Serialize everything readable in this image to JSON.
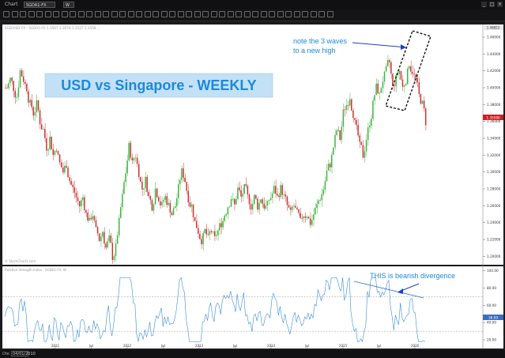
{
  "window": {
    "title": "Chart"
  },
  "symbol": {
    "value": "SGDA1-FX"
  },
  "timeframe": {
    "value": "W"
  },
  "toolbar": {
    "tool_count": 40
  },
  "status": {
    "left_label": "Dte",
    "date_value": "04/01/2010"
  },
  "main_chart": {
    "header_text": "SGD/USD FX - SGDA1-FX  1.3567  1.3574  1.3527  1.3558  ...",
    "title_box": "USD vs Singapore - WEEKLY",
    "annotation_top": "note the 3 waves to a new high",
    "annotation_top_line1": "note the 3 waves",
    "annotation_top_line2": "to a new high",
    "watermark": "© StockCharts.com",
    "last_price": "1.35580",
    "top_marker": "1.48822",
    "y_ticks": [
      "1.46000",
      "1.44000",
      "1.42000",
      "1.40000",
      "1.38000",
      "1.36000",
      "1.34000",
      "1.32000",
      "1.30000",
      "1.28000",
      "1.26000",
      "1.24000",
      "1.22000",
      "1.20000"
    ],
    "y_values": [
      1.46,
      1.44,
      1.42,
      1.4,
      1.38,
      1.36,
      1.34,
      1.32,
      1.3,
      1.28,
      1.26,
      1.24,
      1.22,
      1.2
    ],
    "ymin": 1.19,
    "ymax": 1.475
  },
  "rsi_panel": {
    "header_text": "Relative Strength Index - SGDA1-FX, W",
    "annotation": "THIS is bearish divergence",
    "y_ticks": [
      "100.00",
      "80.00",
      "60.00",
      "40.00",
      "20.00"
    ],
    "y_values": [
      100,
      80,
      60,
      40,
      20
    ],
    "last_value": "36.09",
    "ymin": 10,
    "ymax": 105
  },
  "x_axis": {
    "labels": [
      "2011",
      "Jul",
      "2012",
      "Jul",
      "2013",
      "Jul",
      "2014",
      "Jul",
      "2015",
      "Jul",
      "2016"
    ]
  },
  "colors": {
    "up": "#3cb43c",
    "down": "#c83232",
    "bg": "#ffffff",
    "accent": "#2b8fd6",
    "label_box": "#c2e1f7",
    "frame": "#1b1b1d"
  },
  "chart_data": {
    "type": "candlestick",
    "series": [
      {
        "name": "price",
        "close_path": [
          1.4,
          1.41,
          1.4,
          1.39,
          1.42,
          1.41,
          1.4,
          1.38,
          1.37,
          1.38,
          1.36,
          1.35,
          1.33,
          1.34,
          1.32,
          1.33,
          1.31,
          1.3,
          1.31,
          1.29,
          1.28,
          1.27,
          1.26,
          1.27,
          1.25,
          1.24,
          1.25,
          1.23,
          1.22,
          1.23,
          1.21,
          1.22,
          1.2,
          1.21,
          1.24,
          1.27,
          1.3,
          1.33,
          1.31,
          1.32,
          1.3,
          1.28,
          1.29,
          1.27,
          1.26,
          1.28,
          1.27,
          1.26,
          1.27,
          1.26,
          1.25,
          1.26,
          1.28,
          1.3,
          1.29,
          1.27,
          1.26,
          1.24,
          1.23,
          1.22,
          1.23,
          1.22,
          1.23,
          1.22,
          1.23,
          1.24,
          1.25,
          1.26,
          1.27,
          1.26,
          1.28,
          1.27,
          1.28,
          1.27,
          1.26,
          1.27,
          1.26,
          1.27,
          1.26,
          1.26,
          1.27,
          1.28,
          1.27,
          1.28,
          1.27,
          1.26,
          1.25,
          1.26,
          1.25,
          1.24,
          1.25,
          1.25,
          1.24,
          1.25,
          1.26,
          1.27,
          1.28,
          1.3,
          1.31,
          1.33,
          1.35,
          1.34,
          1.37,
          1.38,
          1.39,
          1.37,
          1.35,
          1.33,
          1.32,
          1.34,
          1.36,
          1.38,
          1.4,
          1.39,
          1.41,
          1.42,
          1.43,
          1.4,
          1.41,
          1.42,
          1.4,
          1.41,
          1.43,
          1.42,
          1.41,
          1.39,
          1.38,
          1.36
        ]
      }
    ]
  }
}
